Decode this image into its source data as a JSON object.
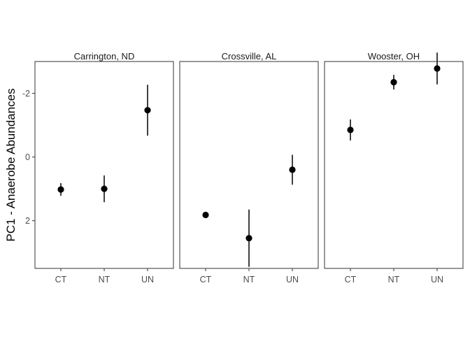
{
  "chart_data": {
    "type": "scatter",
    "ylabel": "PC1 - Anaerobe Abundances",
    "y_reversed": true,
    "ylim": [
      3.5,
      -3.0
    ],
    "yticks": [
      2,
      0,
      -2
    ],
    "ytick_labels": [
      "2",
      "0",
      "-2"
    ],
    "categories": [
      "CT",
      "NT",
      "UN"
    ],
    "grid": false,
    "panels": [
      {
        "title": "Carrington, ND",
        "points": [
          {
            "x": "CT",
            "y": 1.02,
            "lo": 0.82,
            "hi": 1.22
          },
          {
            "x": "NT",
            "y": 1.0,
            "lo": 0.58,
            "hi": 1.42
          },
          {
            "x": "UN",
            "y": -1.47,
            "lo": -2.27,
            "hi": -0.67
          }
        ]
      },
      {
        "title": "Crossville, AL",
        "points": [
          {
            "x": "CT",
            "y": 1.82,
            "lo": 1.82,
            "hi": 1.82
          },
          {
            "x": "NT",
            "y": 2.55,
            "lo": 1.65,
            "hi": 3.45
          },
          {
            "x": "UN",
            "y": 0.4,
            "lo": -0.07,
            "hi": 0.87
          }
        ]
      },
      {
        "title": "Wooster, OH",
        "points": [
          {
            "x": "CT",
            "y": -0.85,
            "lo": -1.18,
            "hi": -0.52
          },
          {
            "x": "NT",
            "y": -2.35,
            "lo": -2.58,
            "hi": -2.12
          },
          {
            "x": "UN",
            "y": -2.78,
            "lo": -3.28,
            "hi": -2.28
          }
        ]
      }
    ]
  }
}
